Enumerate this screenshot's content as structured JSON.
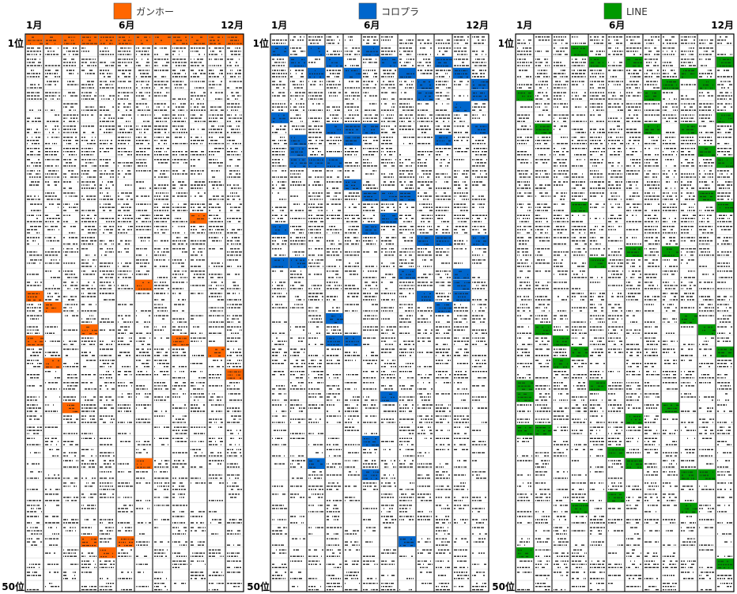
{
  "chart_data": [
    {
      "type": "heatmap",
      "legend": {
        "label": "ガンホー",
        "color": "#ff6600"
      },
      "columns": 12,
      "rows": 50,
      "tick_labels": {
        "x_start": "1月",
        "x_mid": "6月",
        "x_end": "12月",
        "y_start": "1位",
        "y_end": "50位"
      },
      "highlight_color": "#ff6600",
      "highlights": [
        {
          "month": 1,
          "rank": 1
        },
        {
          "month": 2,
          "rank": 1
        },
        {
          "month": 3,
          "rank": 1
        },
        {
          "month": 4,
          "rank": 1
        },
        {
          "month": 5,
          "rank": 1
        },
        {
          "month": 6,
          "rank": 1
        },
        {
          "month": 7,
          "rank": 1
        },
        {
          "month": 8,
          "rank": 1
        },
        {
          "month": 9,
          "rank": 1
        },
        {
          "month": 10,
          "rank": 1
        },
        {
          "month": 11,
          "rank": 1
        },
        {
          "month": 12,
          "rank": 1
        },
        {
          "month": 1,
          "rank": 24
        },
        {
          "month": 1,
          "rank": 28
        },
        {
          "month": 2,
          "rank": 25
        },
        {
          "month": 2,
          "rank": 30
        },
        {
          "month": 3,
          "rank": 34
        },
        {
          "month": 4,
          "rank": 27
        },
        {
          "month": 4,
          "rank": 46
        },
        {
          "month": 5,
          "rank": 47
        },
        {
          "month": 6,
          "rank": 46
        },
        {
          "month": 7,
          "rank": 23
        },
        {
          "month": 7,
          "rank": 39
        },
        {
          "month": 9,
          "rank": 28
        },
        {
          "month": 10,
          "rank": 17
        },
        {
          "month": 11,
          "rank": 29
        },
        {
          "month": 12,
          "rank": 31
        }
      ]
    },
    {
      "type": "heatmap",
      "legend": {
        "label": "コロプラ",
        "color": "#0066cc"
      },
      "columns": 12,
      "rows": 50,
      "tick_labels": {
        "x_start": "1月",
        "x_mid": "6月",
        "x_end": "12月",
        "y_start": "1位",
        "y_end": "50位"
      },
      "highlight_color": "#0066cc",
      "highlights": [
        {
          "month": 1,
          "rank": 2
        },
        {
          "month": 1,
          "rank": 8
        },
        {
          "month": 1,
          "rank": 18
        },
        {
          "month": 1,
          "rank": 21
        },
        {
          "month": 2,
          "rank": 3
        },
        {
          "month": 2,
          "rank": 10
        },
        {
          "month": 2,
          "rank": 11
        },
        {
          "month": 2,
          "rank": 12
        },
        {
          "month": 2,
          "rank": 21
        },
        {
          "month": 3,
          "rank": 2
        },
        {
          "month": 3,
          "rank": 4
        },
        {
          "month": 3,
          "rank": 12
        },
        {
          "month": 3,
          "rank": 39
        },
        {
          "month": 4,
          "rank": 3
        },
        {
          "month": 4,
          "rank": 9
        },
        {
          "month": 4,
          "rank": 12
        },
        {
          "month": 4,
          "rank": 26
        },
        {
          "month": 4,
          "rank": 28
        },
        {
          "month": 5,
          "rank": 4
        },
        {
          "month": 5,
          "rank": 9
        },
        {
          "month": 5,
          "rank": 10
        },
        {
          "month": 5,
          "rank": 14
        },
        {
          "month": 5,
          "rank": 28
        },
        {
          "month": 6,
          "rank": 2
        },
        {
          "month": 6,
          "rank": 9
        },
        {
          "month": 6,
          "rank": 15
        },
        {
          "month": 6,
          "rank": 18
        },
        {
          "month": 6,
          "rank": 37
        },
        {
          "month": 6,
          "rank": 40
        },
        {
          "month": 7,
          "rank": 3
        },
        {
          "month": 7,
          "rank": 15
        },
        {
          "month": 7,
          "rank": 17
        },
        {
          "month": 7,
          "rank": 33
        },
        {
          "month": 8,
          "rank": 4
        },
        {
          "month": 8,
          "rank": 15
        },
        {
          "month": 8,
          "rank": 22
        },
        {
          "month": 8,
          "rank": 46
        },
        {
          "month": 9,
          "rank": 5
        },
        {
          "month": 9,
          "rank": 6
        },
        {
          "month": 9,
          "rank": 19
        },
        {
          "month": 9,
          "rank": 24
        },
        {
          "month": 10,
          "rank": 3
        },
        {
          "month": 10,
          "rank": 10
        },
        {
          "month": 10,
          "rank": 19
        },
        {
          "month": 10,
          "rank": 25
        },
        {
          "month": 11,
          "rank": 4
        },
        {
          "month": 11,
          "rank": 7
        },
        {
          "month": 11,
          "rank": 22
        },
        {
          "month": 11,
          "rank": 23
        },
        {
          "month": 11,
          "rank": 24
        },
        {
          "month": 12,
          "rank": 5
        },
        {
          "month": 12,
          "rank": 6
        },
        {
          "month": 12,
          "rank": 9
        },
        {
          "month": 12,
          "rank": 19
        }
      ]
    },
    {
      "type": "heatmap",
      "legend": {
        "label": "LINE",
        "color": "#009900"
      },
      "columns": 12,
      "rows": 50,
      "tick_labels": {
        "x_start": "1月",
        "x_mid": "6月",
        "x_end": "12月",
        "y_start": "1位",
        "y_end": "50位"
      },
      "highlight_color": "#009900",
      "highlights": [
        {
          "month": 1,
          "rank": 6
        },
        {
          "month": 1,
          "rank": 32
        },
        {
          "month": 1,
          "rank": 33
        },
        {
          "month": 1,
          "rank": 36
        },
        {
          "month": 1,
          "rank": 47
        },
        {
          "month": 2,
          "rank": 9
        },
        {
          "month": 2,
          "rank": 27
        },
        {
          "month": 2,
          "rank": 36
        },
        {
          "month": 3,
          "rank": 28
        },
        {
          "month": 3,
          "rank": 30
        },
        {
          "month": 4,
          "rank": 2
        },
        {
          "month": 4,
          "rank": 16
        },
        {
          "month": 4,
          "rank": 29
        },
        {
          "month": 4,
          "rank": 43
        },
        {
          "month": 5,
          "rank": 3
        },
        {
          "month": 5,
          "rank": 21
        },
        {
          "month": 5,
          "rank": 32
        },
        {
          "month": 6,
          "rank": 38
        },
        {
          "month": 6,
          "rank": 42
        },
        {
          "month": 7,
          "rank": 3
        },
        {
          "month": 7,
          "rank": 20
        },
        {
          "month": 7,
          "rank": 35
        },
        {
          "month": 7,
          "rank": 39
        },
        {
          "month": 8,
          "rank": 6
        },
        {
          "month": 8,
          "rank": 9
        },
        {
          "month": 9,
          "rank": 5
        },
        {
          "month": 9,
          "rank": 20
        },
        {
          "month": 9,
          "rank": 34
        },
        {
          "month": 10,
          "rank": 4
        },
        {
          "month": 10,
          "rank": 9
        },
        {
          "month": 10,
          "rank": 26
        },
        {
          "month": 10,
          "rank": 40
        },
        {
          "month": 10,
          "rank": 43
        },
        {
          "month": 11,
          "rank": 5
        },
        {
          "month": 11,
          "rank": 11
        },
        {
          "month": 11,
          "rank": 15
        },
        {
          "month": 11,
          "rank": 27
        },
        {
          "month": 11,
          "rank": 40
        },
        {
          "month": 12,
          "rank": 3
        },
        {
          "month": 12,
          "rank": 8
        },
        {
          "month": 12,
          "rank": 12
        },
        {
          "month": 12,
          "rank": 16
        },
        {
          "month": 12,
          "rank": 29
        },
        {
          "month": 12,
          "rank": 48
        }
      ]
    }
  ]
}
